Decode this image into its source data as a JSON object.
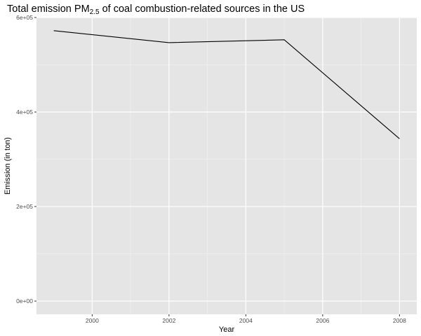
{
  "chart_data": {
    "type": "line",
    "title_main": "Total emission PM",
    "title_subscript": "2.5",
    "title_rest": " of coal combustion-related sources in the US",
    "xlabel": "Year",
    "ylabel": "Emission (in ton)",
    "x": [
      1999,
      2002,
      2005,
      2008
    ],
    "series": [
      {
        "values": [
          572126.5,
          546789.2,
          552881.5,
          343432.2
        ]
      }
    ],
    "xlim": [
      1998.55,
      2008.45
    ],
    "ylim": [
      -28000,
      600000
    ],
    "x_ticks": [
      2000,
      2002,
      2004,
      2006,
      2008
    ],
    "x_tick_labels": [
      "2000",
      "2002",
      "2004",
      "2006",
      "2008"
    ],
    "y_ticks": [
      0,
      200000,
      400000,
      600000
    ],
    "y_tick_labels": [
      "0e+00",
      "2e+05",
      "4e+05",
      "6e+05"
    ],
    "grid": true,
    "legend": "none",
    "colors": {
      "panel_background": "#e5e5e5",
      "grid_major": "#ffffff",
      "grid_minor": "#f2f2f2",
      "line": "#000000",
      "tick_text": "#4d4d4d",
      "text": "#000000"
    }
  }
}
